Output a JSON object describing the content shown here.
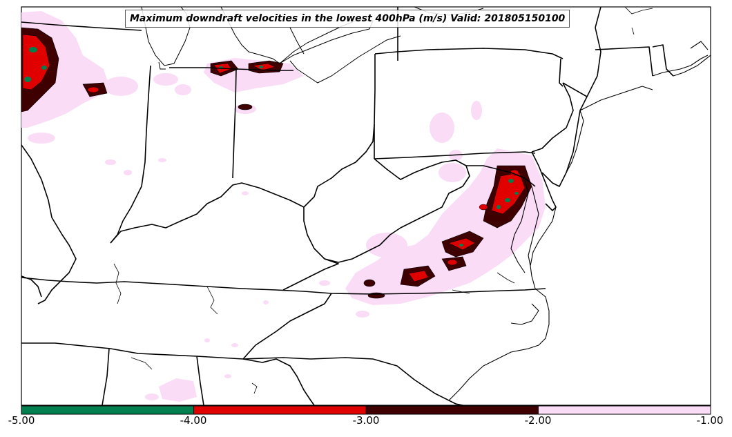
{
  "title": "Maximum downdraft velocities in the lowest 400hPa (m/s) Valid: 201805150100",
  "colorbar": {
    "ticks": [
      "-5.00",
      "-4.00",
      "-3.00",
      "-2.00",
      "-1.00"
    ],
    "bins": [
      {
        "from": -5.0,
        "to": -4.0,
        "color": "#00804e"
      },
      {
        "from": -4.0,
        "to": -3.0,
        "color": "#e00000"
      },
      {
        "from": -3.0,
        "to": -2.0,
        "color": "#3e0000"
      },
      {
        "from": -2.0,
        "to": -1.0,
        "color": "#fadcf7"
      }
    ]
  },
  "colors": {
    "background": "#ffffff",
    "boundary": "#000000"
  }
}
